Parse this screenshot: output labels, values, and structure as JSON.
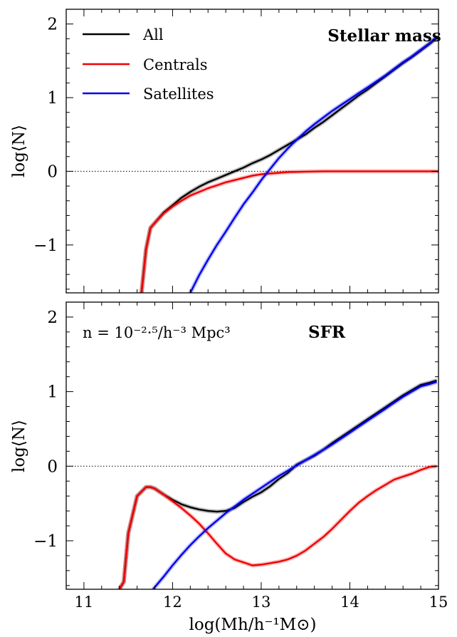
{
  "chart_data": [
    {
      "type": "line",
      "title": "Stellar mass",
      "annotation": "",
      "xlabel": "",
      "ylabel": "log⟨N⟩",
      "xlim": [
        10.8,
        15.0
      ],
      "ylim": [
        -1.65,
        2.2
      ],
      "xticks": [
        11,
        12,
        13,
        14,
        15
      ],
      "xtick_labels": [
        "",
        "",
        "",
        "",
        ""
      ],
      "yticks": [
        -1,
        0,
        1,
        2
      ],
      "ytick_labels": [
        "−1",
        "0",
        "1",
        "2"
      ],
      "legend": {
        "placement": "top-left",
        "entries": [
          "All",
          "Centrals",
          "Satellites"
        ]
      },
      "reference_line": {
        "y": 0,
        "style": "dotted"
      },
      "series": [
        {
          "name": "All",
          "color": "#000000",
          "x": [
            11.65,
            11.7,
            11.75,
            11.8,
            11.9,
            12.0,
            12.1,
            12.2,
            12.3,
            12.4,
            12.5,
            12.6,
            12.7,
            12.8,
            12.9,
            13.0,
            13.1,
            13.2,
            13.3,
            13.4,
            13.5,
            13.6,
            13.7,
            13.8,
            13.9,
            14.0,
            14.1,
            14.2,
            14.3,
            14.4,
            14.5,
            14.6,
            14.7,
            14.8,
            14.9,
            14.98
          ],
          "y": [
            -1.65,
            -1.06,
            -0.77,
            -0.7,
            -0.56,
            -0.46,
            -0.36,
            -0.28,
            -0.21,
            -0.15,
            -0.1,
            -0.05,
            -0.0,
            0.05,
            0.11,
            0.16,
            0.22,
            0.29,
            0.36,
            0.43,
            0.5,
            0.59,
            0.67,
            0.76,
            0.85,
            0.94,
            1.03,
            1.11,
            1.2,
            1.29,
            1.38,
            1.47,
            1.55,
            1.64,
            1.73,
            1.81
          ]
        },
        {
          "name": "Centrals",
          "color": "#ee0000",
          "x": [
            11.65,
            11.7,
            11.75,
            11.8,
            11.9,
            12.0,
            12.1,
            12.2,
            12.3,
            12.4,
            12.5,
            12.6,
            12.7,
            12.8,
            12.9,
            13.0,
            13.1,
            13.2,
            13.3,
            13.5,
            13.7,
            14.0,
            14.5,
            15.0
          ],
          "y": [
            -1.65,
            -1.06,
            -0.77,
            -0.7,
            -0.57,
            -0.48,
            -0.4,
            -0.33,
            -0.28,
            -0.23,
            -0.19,
            -0.15,
            -0.12,
            -0.09,
            -0.06,
            -0.04,
            -0.03,
            -0.02,
            -0.01,
            -0.005,
            0.0,
            0.0,
            0.0,
            0.0
          ]
        },
        {
          "name": "Satellites",
          "color": "#0000ee",
          "x": [
            12.2,
            12.3,
            12.4,
            12.5,
            12.6,
            12.7,
            12.8,
            12.9,
            13.0,
            13.1,
            13.2,
            13.3,
            13.4,
            13.5,
            13.6,
            13.7,
            13.8,
            13.9,
            14.0,
            14.1,
            14.2,
            14.3,
            14.4,
            14.5,
            14.6,
            14.7,
            14.8,
            14.9,
            14.98
          ],
          "y": [
            -1.65,
            -1.41,
            -1.2,
            -1.0,
            -0.82,
            -0.63,
            -0.45,
            -0.29,
            -0.12,
            0.03,
            0.18,
            0.31,
            0.43,
            0.54,
            0.64,
            0.73,
            0.82,
            0.9,
            0.98,
            1.06,
            1.14,
            1.22,
            1.3,
            1.39,
            1.48,
            1.56,
            1.65,
            1.74,
            1.82
          ]
        }
      ]
    },
    {
      "type": "line",
      "title": "SFR",
      "annotation": "n = 10⁻²·⁵/h⁻³ Mpc³",
      "xlabel": "log(Mh/h⁻¹M⊙)",
      "ylabel": "log⟨N⟩",
      "xlim": [
        10.8,
        15.0
      ],
      "ylim": [
        -1.65,
        2.2
      ],
      "xticks": [
        11,
        12,
        13,
        14,
        15
      ],
      "xtick_labels": [
        "11",
        "12",
        "13",
        "14",
        "15"
      ],
      "yticks": [
        -1,
        0,
        1,
        2
      ],
      "ytick_labels": [
        "−1",
        "0",
        "1",
        "2"
      ],
      "reference_line": {
        "y": 0,
        "style": "dotted"
      },
      "series": [
        {
          "name": "All",
          "color": "#000000",
          "x": [
            11.4,
            11.45,
            11.5,
            11.6,
            11.7,
            11.75,
            11.8,
            11.9,
            12.0,
            12.1,
            12.2,
            12.3,
            12.4,
            12.5,
            12.6,
            12.7,
            12.8,
            12.9,
            13.0,
            13.1,
            13.2,
            13.3,
            13.4,
            13.5,
            13.6,
            13.7,
            13.8,
            13.9,
            14.0,
            14.1,
            14.2,
            14.3,
            14.4,
            14.5,
            14.6,
            14.7,
            14.8,
            14.9,
            14.98
          ],
          "y": [
            -1.65,
            -1.55,
            -0.9,
            -0.4,
            -0.28,
            -0.28,
            -0.3,
            -0.38,
            -0.45,
            -0.51,
            -0.55,
            -0.58,
            -0.6,
            -0.61,
            -0.6,
            -0.56,
            -0.48,
            -0.41,
            -0.35,
            -0.27,
            -0.17,
            -0.09,
            0.02,
            0.08,
            0.14,
            0.22,
            0.31,
            0.39,
            0.47,
            0.55,
            0.63,
            0.71,
            0.79,
            0.87,
            0.95,
            1.02,
            1.09,
            1.12,
            1.15
          ]
        },
        {
          "name": "Centrals",
          "color": "#ee0000",
          "x": [
            11.4,
            11.45,
            11.5,
            11.6,
            11.7,
            11.75,
            11.8,
            11.9,
            12.0,
            12.1,
            12.2,
            12.3,
            12.4,
            12.5,
            12.6,
            12.7,
            12.8,
            12.9,
            13.0,
            13.1,
            13.2,
            13.3,
            13.4,
            13.5,
            13.6,
            13.7,
            13.8,
            13.9,
            14.0,
            14.1,
            14.2,
            14.3,
            14.4,
            14.5,
            14.6,
            14.7,
            14.8,
            14.9,
            14.98
          ],
          "y": [
            -1.65,
            -1.55,
            -0.9,
            -0.4,
            -0.28,
            -0.28,
            -0.3,
            -0.38,
            -0.47,
            -0.56,
            -0.66,
            -0.77,
            -0.9,
            -1.04,
            -1.17,
            -1.25,
            -1.29,
            -1.33,
            -1.32,
            -1.3,
            -1.28,
            -1.25,
            -1.2,
            -1.13,
            -1.04,
            -0.95,
            -0.84,
            -0.72,
            -0.6,
            -0.49,
            -0.4,
            -0.32,
            -0.25,
            -0.18,
            -0.14,
            -0.1,
            -0.05,
            -0.01,
            0.0
          ]
        },
        {
          "name": "Satellites",
          "color": "#0000ee",
          "x": [
            11.78,
            11.9,
            12.0,
            12.1,
            12.2,
            12.3,
            12.4,
            12.5,
            12.6,
            12.7,
            12.8,
            12.9,
            13.0,
            13.1,
            13.2,
            13.3,
            13.4,
            13.5,
            13.6,
            13.7,
            13.8,
            13.9,
            14.0,
            14.1,
            14.2,
            14.3,
            14.4,
            14.5,
            14.6,
            14.7,
            14.8,
            14.9,
            14.98
          ],
          "y": [
            -1.65,
            -1.48,
            -1.33,
            -1.19,
            -1.06,
            -0.94,
            -0.83,
            -0.73,
            -0.63,
            -0.54,
            -0.45,
            -0.37,
            -0.29,
            -0.21,
            -0.13,
            -0.06,
            0.01,
            0.08,
            0.15,
            0.22,
            0.29,
            0.37,
            0.45,
            0.53,
            0.61,
            0.69,
            0.77,
            0.85,
            0.93,
            1.0,
            1.07,
            1.1,
            1.13
          ]
        }
      ]
    }
  ]
}
